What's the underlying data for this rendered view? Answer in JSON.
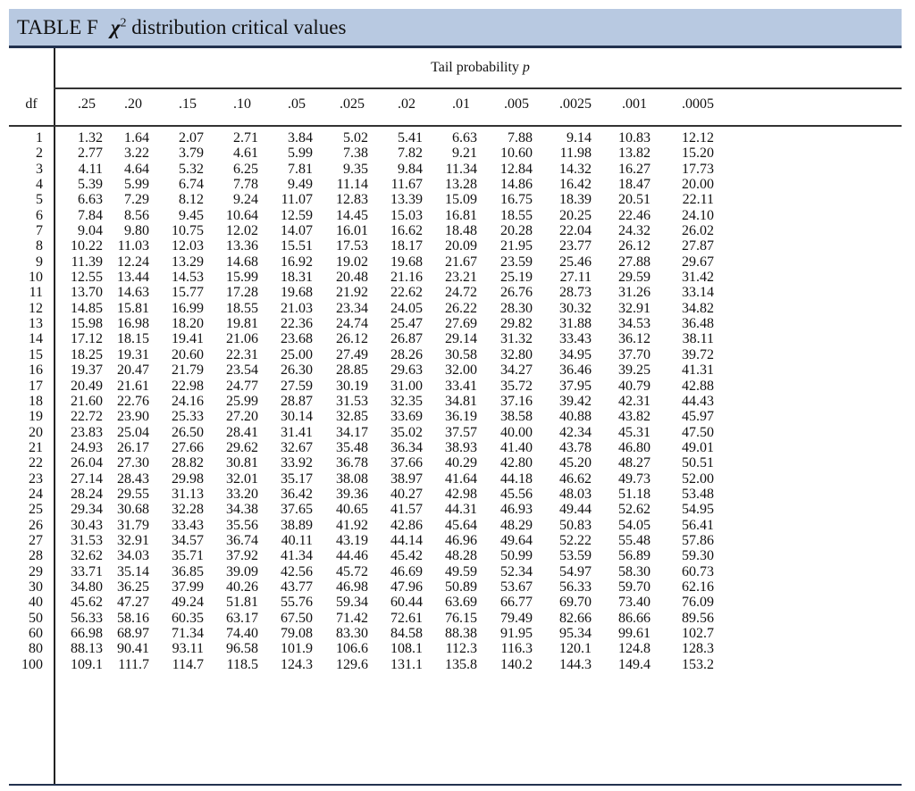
{
  "title": {
    "table_label": "TABLE F",
    "symbol": "χ",
    "superscript": "2",
    "caption": "distribution critical values"
  },
  "header": {
    "tail_label": "Tail probability",
    "tail_symbol": "p",
    "df_label": "df",
    "p_values": [
      ".25",
      ".20",
      ".15",
      ".10",
      ".05",
      ".025",
      ".02",
      ".01",
      ".005",
      ".0025",
      ".001",
      ".0005"
    ]
  },
  "rows": [
    {
      "df": "1",
      "v": [
        "1.32",
        "1.64",
        "2.07",
        "2.71",
        "3.84",
        "5.02",
        "5.41",
        "6.63",
        "7.88",
        "9.14",
        "10.83",
        "12.12"
      ]
    },
    {
      "df": "2",
      "v": [
        "2.77",
        "3.22",
        "3.79",
        "4.61",
        "5.99",
        "7.38",
        "7.82",
        "9.21",
        "10.60",
        "11.98",
        "13.82",
        "15.20"
      ]
    },
    {
      "df": "3",
      "v": [
        "4.11",
        "4.64",
        "5.32",
        "6.25",
        "7.81",
        "9.35",
        "9.84",
        "11.34",
        "12.84",
        "14.32",
        "16.27",
        "17.73"
      ]
    },
    {
      "df": "4",
      "v": [
        "5.39",
        "5.99",
        "6.74",
        "7.78",
        "9.49",
        "11.14",
        "11.67",
        "13.28",
        "14.86",
        "16.42",
        "18.47",
        "20.00"
      ]
    },
    {
      "df": "5",
      "v": [
        "6.63",
        "7.29",
        "8.12",
        "9.24",
        "11.07",
        "12.83",
        "13.39",
        "15.09",
        "16.75",
        "18.39",
        "20.51",
        "22.11"
      ]
    },
    {
      "df": "6",
      "v": [
        "7.84",
        "8.56",
        "9.45",
        "10.64",
        "12.59",
        "14.45",
        "15.03",
        "16.81",
        "18.55",
        "20.25",
        "22.46",
        "24.10"
      ]
    },
    {
      "df": "7",
      "v": [
        "9.04",
        "9.80",
        "10.75",
        "12.02",
        "14.07",
        "16.01",
        "16.62",
        "18.48",
        "20.28",
        "22.04",
        "24.32",
        "26.02"
      ]
    },
    {
      "df": "8",
      "v": [
        "10.22",
        "11.03",
        "12.03",
        "13.36",
        "15.51",
        "17.53",
        "18.17",
        "20.09",
        "21.95",
        "23.77",
        "26.12",
        "27.87"
      ]
    },
    {
      "df": "9",
      "v": [
        "11.39",
        "12.24",
        "13.29",
        "14.68",
        "16.92",
        "19.02",
        "19.68",
        "21.67",
        "23.59",
        "25.46",
        "27.88",
        "29.67"
      ]
    },
    {
      "df": "10",
      "v": [
        "12.55",
        "13.44",
        "14.53",
        "15.99",
        "18.31",
        "20.48",
        "21.16",
        "23.21",
        "25.19",
        "27.11",
        "29.59",
        "31.42"
      ]
    },
    {
      "df": "11",
      "v": [
        "13.70",
        "14.63",
        "15.77",
        "17.28",
        "19.68",
        "21.92",
        "22.62",
        "24.72",
        "26.76",
        "28.73",
        "31.26",
        "33.14"
      ]
    },
    {
      "df": "12",
      "v": [
        "14.85",
        "15.81",
        "16.99",
        "18.55",
        "21.03",
        "23.34",
        "24.05",
        "26.22",
        "28.30",
        "30.32",
        "32.91",
        "34.82"
      ]
    },
    {
      "df": "13",
      "v": [
        "15.98",
        "16.98",
        "18.20",
        "19.81",
        "22.36",
        "24.74",
        "25.47",
        "27.69",
        "29.82",
        "31.88",
        "34.53",
        "36.48"
      ]
    },
    {
      "df": "14",
      "v": [
        "17.12",
        "18.15",
        "19.41",
        "21.06",
        "23.68",
        "26.12",
        "26.87",
        "29.14",
        "31.32",
        "33.43",
        "36.12",
        "38.11"
      ]
    },
    {
      "df": "15",
      "v": [
        "18.25",
        "19.31",
        "20.60",
        "22.31",
        "25.00",
        "27.49",
        "28.26",
        "30.58",
        "32.80",
        "34.95",
        "37.70",
        "39.72"
      ]
    },
    {
      "df": "16",
      "v": [
        "19.37",
        "20.47",
        "21.79",
        "23.54",
        "26.30",
        "28.85",
        "29.63",
        "32.00",
        "34.27",
        "36.46",
        "39.25",
        "41.31"
      ]
    },
    {
      "df": "17",
      "v": [
        "20.49",
        "21.61",
        "22.98",
        "24.77",
        "27.59",
        "30.19",
        "31.00",
        "33.41",
        "35.72",
        "37.95",
        "40.79",
        "42.88"
      ]
    },
    {
      "df": "18",
      "v": [
        "21.60",
        "22.76",
        "24.16",
        "25.99",
        "28.87",
        "31.53",
        "32.35",
        "34.81",
        "37.16",
        "39.42",
        "42.31",
        "44.43"
      ]
    },
    {
      "df": "19",
      "v": [
        "22.72",
        "23.90",
        "25.33",
        "27.20",
        "30.14",
        "32.85",
        "33.69",
        "36.19",
        "38.58",
        "40.88",
        "43.82",
        "45.97"
      ]
    },
    {
      "df": "20",
      "v": [
        "23.83",
        "25.04",
        "26.50",
        "28.41",
        "31.41",
        "34.17",
        "35.02",
        "37.57",
        "40.00",
        "42.34",
        "45.31",
        "47.50"
      ]
    },
    {
      "df": "21",
      "v": [
        "24.93",
        "26.17",
        "27.66",
        "29.62",
        "32.67",
        "35.48",
        "36.34",
        "38.93",
        "41.40",
        "43.78",
        "46.80",
        "49.01"
      ]
    },
    {
      "df": "22",
      "v": [
        "26.04",
        "27.30",
        "28.82",
        "30.81",
        "33.92",
        "36.78",
        "37.66",
        "40.29",
        "42.80",
        "45.20",
        "48.27",
        "50.51"
      ]
    },
    {
      "df": "23",
      "v": [
        "27.14",
        "28.43",
        "29.98",
        "32.01",
        "35.17",
        "38.08",
        "38.97",
        "41.64",
        "44.18",
        "46.62",
        "49.73",
        "52.00"
      ]
    },
    {
      "df": "24",
      "v": [
        "28.24",
        "29.55",
        "31.13",
        "33.20",
        "36.42",
        "39.36",
        "40.27",
        "42.98",
        "45.56",
        "48.03",
        "51.18",
        "53.48"
      ]
    },
    {
      "df": "25",
      "v": [
        "29.34",
        "30.68",
        "32.28",
        "34.38",
        "37.65",
        "40.65",
        "41.57",
        "44.31",
        "46.93",
        "49.44",
        "52.62",
        "54.95"
      ]
    },
    {
      "df": "26",
      "v": [
        "30.43",
        "31.79",
        "33.43",
        "35.56",
        "38.89",
        "41.92",
        "42.86",
        "45.64",
        "48.29",
        "50.83",
        "54.05",
        "56.41"
      ]
    },
    {
      "df": "27",
      "v": [
        "31.53",
        "32.91",
        "34.57",
        "36.74",
        "40.11",
        "43.19",
        "44.14",
        "46.96",
        "49.64",
        "52.22",
        "55.48",
        "57.86"
      ]
    },
    {
      "df": "28",
      "v": [
        "32.62",
        "34.03",
        "35.71",
        "37.92",
        "41.34",
        "44.46",
        "45.42",
        "48.28",
        "50.99",
        "53.59",
        "56.89",
        "59.30"
      ]
    },
    {
      "df": "29",
      "v": [
        "33.71",
        "35.14",
        "36.85",
        "39.09",
        "42.56",
        "45.72",
        "46.69",
        "49.59",
        "52.34",
        "54.97",
        "58.30",
        "60.73"
      ]
    },
    {
      "df": "30",
      "v": [
        "34.80",
        "36.25",
        "37.99",
        "40.26",
        "43.77",
        "46.98",
        "47.96",
        "50.89",
        "53.67",
        "56.33",
        "59.70",
        "62.16"
      ]
    },
    {
      "df": "40",
      "v": [
        "45.62",
        "47.27",
        "49.24",
        "51.81",
        "55.76",
        "59.34",
        "60.44",
        "63.69",
        "66.77",
        "69.70",
        "73.40",
        "76.09"
      ]
    },
    {
      "df": "50",
      "v": [
        "56.33",
        "58.16",
        "60.35",
        "63.17",
        "67.50",
        "71.42",
        "72.61",
        "76.15",
        "79.49",
        "82.66",
        "86.66",
        "89.56"
      ]
    },
    {
      "df": "60",
      "v": [
        "66.98",
        "68.97",
        "71.34",
        "74.40",
        "79.08",
        "83.30",
        "84.58",
        "88.38",
        "91.95",
        "95.34",
        "99.61",
        "102.7"
      ]
    },
    {
      "df": "80",
      "v": [
        "88.13",
        "90.41",
        "93.11",
        "96.58",
        "101.9",
        "106.6",
        "108.1",
        "112.3",
        "116.3",
        "120.1",
        "124.8",
        "128.3"
      ]
    },
    {
      "df": "100",
      "v": [
        "109.1",
        "111.7",
        "114.7",
        "118.5",
        "124.3",
        "129.6",
        "131.1",
        "135.8",
        "140.2",
        "144.3",
        "149.4",
        "153.2"
      ]
    }
  ]
}
